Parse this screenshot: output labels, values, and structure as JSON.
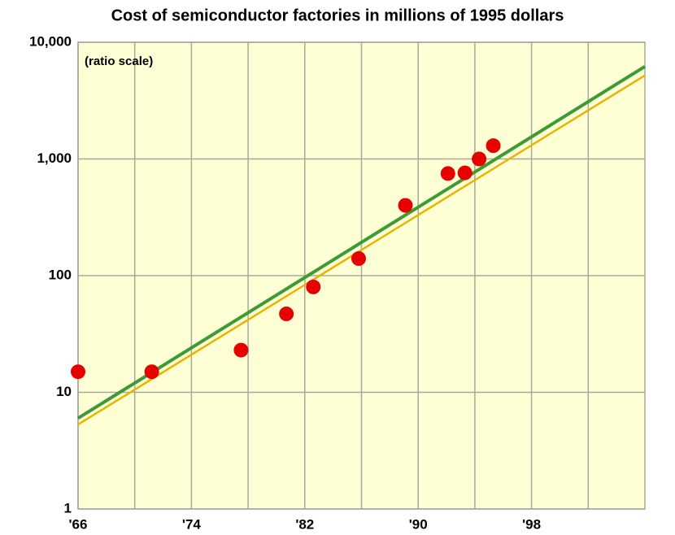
{
  "chart_data": {
    "type": "scatter",
    "title": "Cost of semiconductor factories in millions of 1995 dollars",
    "annotation": "(ratio scale)",
    "x": [
      1966,
      1971.2,
      1977.5,
      1980.7,
      1982.6,
      1985.8,
      1989.1,
      1992.1,
      1993.3,
      1994.3,
      1995.3
    ],
    "values": [
      15,
      15,
      23,
      47,
      80,
      140,
      400,
      750,
      760,
      1000,
      1300
    ],
    "color": "#e60000",
    "lines": [
      {
        "color": "#3d9b35",
        "x": [
          1966,
          2006
        ],
        "values": [
          6,
          6200
        ]
      },
      {
        "color": "#e8b400",
        "x": [
          1966,
          2006
        ],
        "values": [
          5.3,
          5200
        ]
      }
    ],
    "xlim": [
      1966,
      2006
    ],
    "xticks": [
      {
        "value": 1966,
        "label": "'66"
      },
      {
        "value": 1974,
        "label": "'74"
      },
      {
        "value": 1982,
        "label": "'82"
      },
      {
        "value": 1990,
        "label": "'90"
      },
      {
        "value": 1998,
        "label": "'98"
      }
    ],
    "xminorticks": [
      1970,
      1978,
      1986,
      1994,
      2002
    ],
    "ylim": [
      1,
      10000
    ],
    "yticks": [
      {
        "value": 10000,
        "label": "10,000"
      },
      {
        "value": 1000,
        "label": "1,000"
      },
      100,
      10,
      1
    ],
    "yscale": "log",
    "grid": true,
    "background": "#ffffd6"
  }
}
